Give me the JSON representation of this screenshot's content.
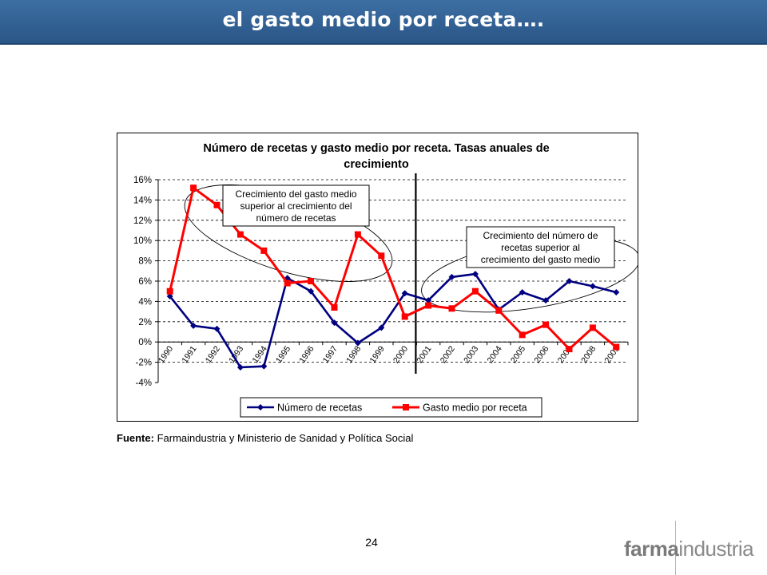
{
  "header": {
    "title": "el gasto medio por receta…."
  },
  "source": {
    "label": "Fuente:",
    "text": "Farmaindustria y Ministerio de Sanidad y Política Social"
  },
  "page_number": "24",
  "logo": {
    "part1": "farma",
    "part2": "industria"
  },
  "colors": {
    "header": "#2f5f94",
    "series1": "#000080",
    "series2": "#ff0000"
  },
  "chart_data": {
    "type": "line",
    "title_lines": [
      "Número de recetas y gasto medio por receta. Tasas anuales de",
      "crecimiento"
    ],
    "x": [
      "1990",
      "1991",
      "1992",
      "1993",
      "1994",
      "1995",
      "1996",
      "1997",
      "1998",
      "1999",
      "2000",
      "2001",
      "2002",
      "2003",
      "2004",
      "2005",
      "2006",
      "2007",
      "2008",
      "2009"
    ],
    "ylim": [
      -4,
      16
    ],
    "yticks": [
      -4,
      -2,
      0,
      2,
      4,
      6,
      8,
      10,
      12,
      14,
      16
    ],
    "ytick_format": "percent",
    "grid": "dashed-horizontal",
    "legend_position": "bottom",
    "series": [
      {
        "name": "Número de recetas",
        "color": "#000080",
        "marker": "diamond",
        "values": [
          4.5,
          1.6,
          1.3,
          -2.5,
          -2.4,
          6.3,
          5.0,
          1.9,
          -0.1,
          1.4,
          4.8,
          4.1,
          6.4,
          6.7,
          3.2,
          4.9,
          4.1,
          6.0,
          5.5,
          4.9
        ]
      },
      {
        "name": "Gasto medio por receta",
        "color": "#ff0000",
        "marker": "square",
        "values": [
          5.0,
          15.2,
          13.5,
          10.6,
          9.0,
          5.8,
          6.0,
          3.4,
          10.6,
          8.5,
          2.5,
          3.6,
          3.3,
          5.0,
          3.1,
          0.7,
          1.7,
          -0.7,
          1.4,
          -0.5
        ]
      }
    ],
    "divider_after": "2000",
    "annotations": [
      {
        "lines": [
          "Crecimiento del gasto medio",
          "superior al crecimiento del",
          "número de recetas"
        ]
      },
      {
        "lines": [
          "Crecimiento del número de",
          "recetas superior al",
          "crecimiento del gasto medio"
        ]
      }
    ]
  }
}
